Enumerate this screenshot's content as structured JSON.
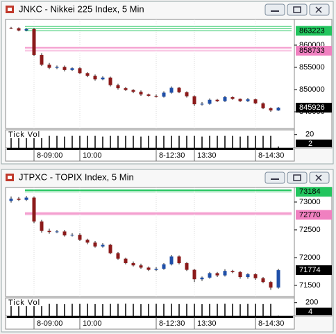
{
  "chart_data": [
    {
      "type": "candlestick",
      "title": "JNKC - Nikkei 225 Index, 5 Min",
      "up_color": "#1f4fa8",
      "down_color": "#8b1a1a",
      "categories": [
        null,
        null,
        null,
        "8-09:00",
        null,
        null,
        null,
        null,
        null,
        "10:00",
        null,
        null,
        null,
        null,
        null,
        null,
        null,
        null,
        null,
        "8-12:30",
        null,
        null,
        null,
        null,
        "13:30",
        null,
        null,
        null,
        null,
        null,
        null,
        null,
        "8-14:30",
        null,
        null,
        null
      ],
      "open": [
        863900,
        863800,
        863300,
        863600,
        857800,
        855600,
        854900,
        855100,
        854400,
        854800,
        853700,
        853100,
        852300,
        852700,
        851000,
        850300,
        849900,
        849500,
        848900,
        848600,
        848400,
        849300,
        850400,
        849400,
        848500,
        846700,
        846800,
        847700,
        847400,
        848300,
        847900,
        847400,
        847800,
        846900,
        845800,
        845300
      ],
      "high": [
        864100,
        864000,
        863800,
        863900,
        858200,
        856000,
        855400,
        855400,
        855000,
        855100,
        853900,
        853400,
        853000,
        852900,
        851300,
        850600,
        850100,
        849800,
        849100,
        848900,
        849600,
        850700,
        850600,
        849600,
        848700,
        847200,
        848000,
        847900,
        848600,
        848500,
        848000,
        848100,
        848000,
        847100,
        846000,
        846100
      ],
      "low": [
        863600,
        863100,
        863100,
        857500,
        855300,
        854600,
        854600,
        854100,
        854200,
        853500,
        852800,
        852000,
        852100,
        850700,
        850000,
        849700,
        849200,
        848600,
        848400,
        848200,
        848200,
        849100,
        849200,
        848200,
        846300,
        846400,
        846600,
        847200,
        847200,
        847700,
        847200,
        847200,
        846700,
        845600,
        845000,
        845200
      ],
      "close": [
        863800,
        863300,
        863600,
        857800,
        855600,
        854900,
        855100,
        854400,
        854800,
        853700,
        853100,
        852300,
        852700,
        851000,
        850300,
        849900,
        849500,
        848900,
        848600,
        848400,
        849300,
        850400,
        849400,
        848500,
        846700,
        846800,
        847700,
        847400,
        848300,
        847900,
        847400,
        847800,
        846900,
        845800,
        845300,
        845926
      ],
      "ylim": [
        841250,
        865780
      ],
      "yticks": [
        845000,
        850000,
        855000,
        860000
      ],
      "reference_lines": [
        {
          "color": "#22c55e",
          "values": [
            864200,
            863700,
            863223
          ]
        },
        {
          "color": "#f080c0",
          "values": [
            859500,
            859200,
            858733
          ]
        }
      ],
      "volume_label": "Tick Vol",
      "volume": [
        18,
        18,
        18,
        19,
        19,
        18,
        18,
        17,
        18,
        18,
        18,
        18,
        17,
        18,
        18,
        18,
        18,
        17,
        18,
        18,
        18,
        18,
        18,
        18,
        18,
        17,
        18,
        18,
        18,
        18,
        17,
        18,
        18,
        18,
        18,
        2
      ],
      "vol_ylim": [
        0,
        27
      ],
      "vol_yticks": [
        20
      ]
    },
    {
      "type": "candlestick",
      "title": "JTPXC - TOPIX Index, 5 Min",
      "up_color": "#1f4fa8",
      "down_color": "#8b1a1a",
      "categories": [
        null,
        null,
        null,
        "8-09:00",
        null,
        null,
        null,
        null,
        null,
        "10:00",
        null,
        null,
        null,
        null,
        null,
        null,
        null,
        null,
        null,
        "8-12:30",
        null,
        null,
        null,
        null,
        "13:30",
        null,
        null,
        null,
        null,
        null,
        null,
        null,
        "8-14:30",
        null,
        null,
        null
      ],
      "open": [
        73020,
        73060,
        73040,
        73080,
        72650,
        72480,
        72460,
        72470,
        72400,
        72410,
        72320,
        72270,
        72200,
        72230,
        72080,
        71980,
        71900,
        71860,
        71820,
        71780,
        71800,
        71880,
        72020,
        71900,
        71780,
        71610,
        71640,
        71720,
        71680,
        71760,
        71740,
        71650,
        71700,
        71630,
        71560,
        71460
      ],
      "high": [
        73100,
        73090,
        73110,
        73100,
        72680,
        72520,
        72500,
        72500,
        72440,
        72440,
        72340,
        72300,
        72260,
        72250,
        72100,
        72000,
        71930,
        71890,
        71840,
        71830,
        71900,
        72050,
        72040,
        71920,
        71800,
        71660,
        71740,
        71740,
        71790,
        71780,
        71760,
        71720,
        71720,
        71650,
        71580,
        71800
      ],
      "low": [
        72990,
        73020,
        73020,
        72620,
        72450,
        72430,
        72440,
        72380,
        72380,
        72300,
        72240,
        72180,
        72180,
        72060,
        71960,
        71880,
        71840,
        71800,
        71760,
        71760,
        71780,
        71860,
        71880,
        71760,
        71560,
        71580,
        71620,
        71650,
        71660,
        71720,
        71620,
        71620,
        71600,
        71540,
        71420,
        71440
      ],
      "close": [
        73060,
        73040,
        73080,
        72650,
        72480,
        72460,
        72470,
        72400,
        72410,
        72320,
        72270,
        72200,
        72230,
        72080,
        71980,
        71900,
        71860,
        71820,
        71780,
        71800,
        71880,
        72020,
        71900,
        71780,
        71610,
        71640,
        71720,
        71680,
        71760,
        71740,
        71650,
        71700,
        71630,
        71560,
        71460,
        71774
      ],
      "ylim": [
        71300,
        73262
      ],
      "yticks": [
        71500,
        72000,
        72500,
        73000
      ],
      "reference_lines": [
        {
          "color": "#22c55e",
          "values": [
            73225,
            73205,
            73184
          ]
        },
        {
          "color": "#f080c0",
          "values": [
            72812,
            72790,
            72770
          ]
        }
      ],
      "volume_label": "Tick Vol",
      "volume": [
        180,
        182,
        178,
        185,
        184,
        180,
        179,
        176,
        181,
        180,
        182,
        178,
        177,
        180,
        181,
        183,
        180,
        176,
        179,
        181,
        180,
        182,
        178,
        180,
        181,
        176,
        179,
        180,
        182,
        181,
        175,
        180,
        181,
        178,
        180,
        4
      ],
      "vol_ylim": [
        0,
        270
      ],
      "vol_yticks": [
        200
      ]
    }
  ]
}
